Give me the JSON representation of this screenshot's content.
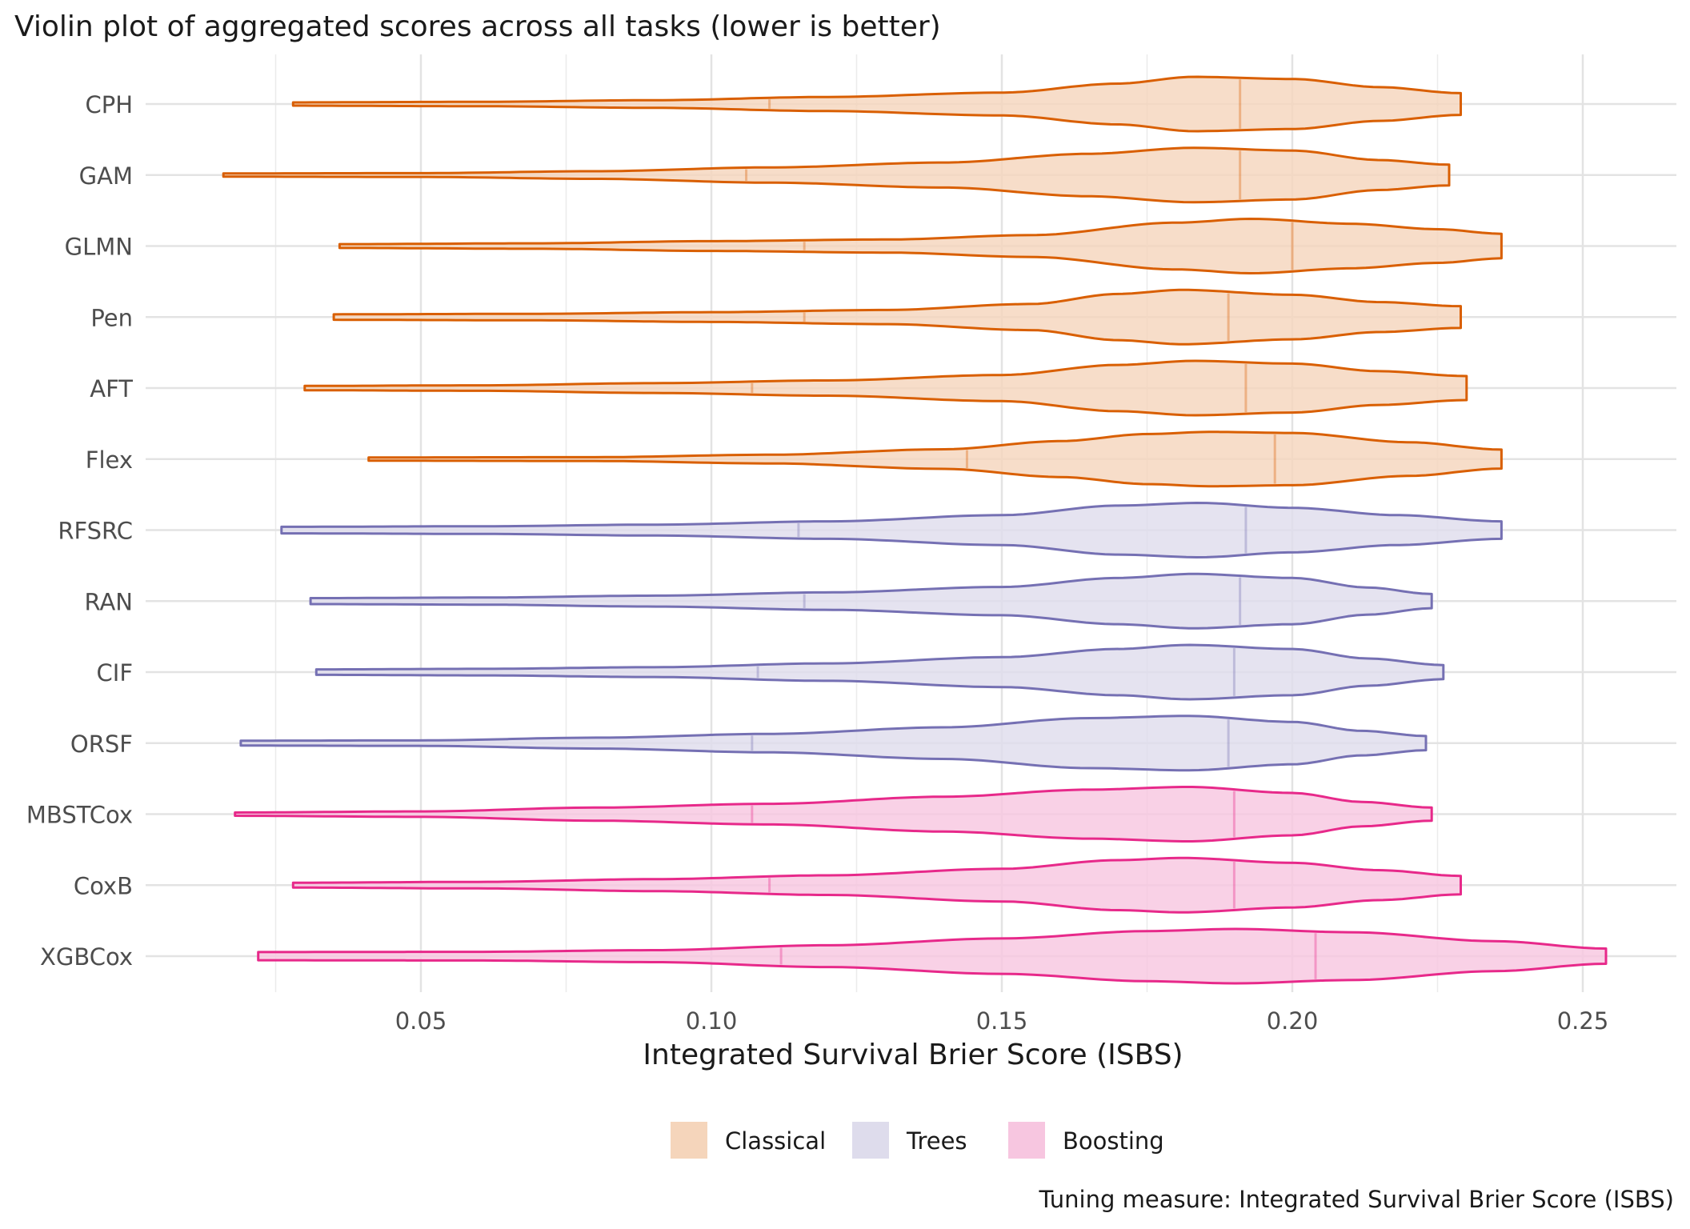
{
  "chart_data": {
    "type": "violin",
    "title": "Violin plot of aggregated scores across all tasks (lower is better)",
    "xlabel": "Integrated Survival Brier Score (ISBS)",
    "ylabel": "",
    "caption": "Tuning measure: Integrated Survival Brier Score (ISBS)",
    "xlim": [
      0.0,
      0.27
    ],
    "x_ticks": [
      {
        "value": 0.05,
        "label": "0.05"
      },
      {
        "value": 0.1,
        "label": "0.10"
      },
      {
        "value": 0.15,
        "label": "0.15"
      },
      {
        "value": 0.2,
        "label": "0.20"
      },
      {
        "value": 0.25,
        "label": "0.25"
      }
    ],
    "grid": true,
    "legend_position": "bottom",
    "legend": [
      {
        "label": "Classical",
        "fill": "#f5d5bb",
        "stroke": "#d95f02"
      },
      {
        "label": "Trees",
        "fill": "#dedcec",
        "stroke": "#7570b3"
      },
      {
        "label": "Boosting",
        "fill": "#f7c6e0",
        "stroke": "#e7298a"
      }
    ],
    "series": [
      {
        "name": "CPH",
        "group": "Classical",
        "min": 0.028,
        "max": 0.229,
        "quantiles": [
          0.11,
          0.191
        ],
        "peak": 0.183,
        "density": [
          [
            0.028,
            0.06
          ],
          [
            0.06,
            0.08
          ],
          [
            0.09,
            0.14
          ],
          [
            0.12,
            0.26
          ],
          [
            0.15,
            0.42
          ],
          [
            0.17,
            0.75
          ],
          [
            0.183,
            1.0
          ],
          [
            0.2,
            0.92
          ],
          [
            0.215,
            0.62
          ],
          [
            0.229,
            0.4
          ]
        ]
      },
      {
        "name": "GAM",
        "group": "Classical",
        "min": 0.016,
        "max": 0.227,
        "quantiles": [
          0.106,
          0.191
        ],
        "peak": 0.183,
        "density": [
          [
            0.016,
            0.06
          ],
          [
            0.05,
            0.07
          ],
          [
            0.08,
            0.14
          ],
          [
            0.11,
            0.28
          ],
          [
            0.14,
            0.46
          ],
          [
            0.165,
            0.78
          ],
          [
            0.183,
            1.0
          ],
          [
            0.2,
            0.9
          ],
          [
            0.215,
            0.55
          ],
          [
            0.227,
            0.38
          ]
        ]
      },
      {
        "name": "GLMN",
        "group": "Classical",
        "min": 0.036,
        "max": 0.236,
        "quantiles": [
          0.116,
          0.2
        ],
        "peak": 0.193,
        "density": [
          [
            0.036,
            0.07
          ],
          [
            0.07,
            0.1
          ],
          [
            0.1,
            0.18
          ],
          [
            0.13,
            0.24
          ],
          [
            0.155,
            0.4
          ],
          [
            0.18,
            0.86
          ],
          [
            0.193,
            1.0
          ],
          [
            0.21,
            0.82
          ],
          [
            0.225,
            0.62
          ],
          [
            0.236,
            0.45
          ]
        ]
      },
      {
        "name": "Pen",
        "group": "Classical",
        "min": 0.035,
        "max": 0.229,
        "quantiles": [
          0.116,
          0.189
        ],
        "peak": 0.181,
        "density": [
          [
            0.035,
            0.1
          ],
          [
            0.07,
            0.12
          ],
          [
            0.1,
            0.18
          ],
          [
            0.13,
            0.26
          ],
          [
            0.155,
            0.48
          ],
          [
            0.17,
            0.85
          ],
          [
            0.181,
            1.0
          ],
          [
            0.2,
            0.82
          ],
          [
            0.215,
            0.55
          ],
          [
            0.229,
            0.4
          ]
        ]
      },
      {
        "name": "AFT",
        "group": "Classical",
        "min": 0.03,
        "max": 0.23,
        "quantiles": [
          0.107,
          0.192
        ],
        "peak": 0.183,
        "density": [
          [
            0.03,
            0.08
          ],
          [
            0.06,
            0.1
          ],
          [
            0.09,
            0.18
          ],
          [
            0.12,
            0.28
          ],
          [
            0.15,
            0.48
          ],
          [
            0.17,
            0.85
          ],
          [
            0.183,
            1.0
          ],
          [
            0.2,
            0.9
          ],
          [
            0.215,
            0.62
          ],
          [
            0.23,
            0.44
          ]
        ]
      },
      {
        "name": "Flex",
        "group": "Classical",
        "min": 0.041,
        "max": 0.236,
        "quantiles": [
          0.144,
          0.197
        ],
        "peak": 0.186,
        "density": [
          [
            0.041,
            0.06
          ],
          [
            0.08,
            0.07
          ],
          [
            0.11,
            0.16
          ],
          [
            0.14,
            0.36
          ],
          [
            0.16,
            0.66
          ],
          [
            0.175,
            0.92
          ],
          [
            0.186,
            1.0
          ],
          [
            0.2,
            0.96
          ],
          [
            0.22,
            0.62
          ],
          [
            0.236,
            0.35
          ]
        ]
      },
      {
        "name": "RFSRC",
        "group": "Trees",
        "min": 0.026,
        "max": 0.236,
        "quantiles": [
          0.115,
          0.192
        ],
        "peak": 0.184,
        "density": [
          [
            0.026,
            0.12
          ],
          [
            0.06,
            0.14
          ],
          [
            0.09,
            0.2
          ],
          [
            0.12,
            0.32
          ],
          [
            0.15,
            0.55
          ],
          [
            0.17,
            0.9
          ],
          [
            0.184,
            1.0
          ],
          [
            0.2,
            0.82
          ],
          [
            0.218,
            0.55
          ],
          [
            0.236,
            0.32
          ]
        ]
      },
      {
        "name": "RAN",
        "group": "Trees",
        "min": 0.031,
        "max": 0.224,
        "quantiles": [
          0.116,
          0.191
        ],
        "peak": 0.183,
        "density": [
          [
            0.031,
            0.11
          ],
          [
            0.06,
            0.13
          ],
          [
            0.09,
            0.2
          ],
          [
            0.12,
            0.32
          ],
          [
            0.15,
            0.52
          ],
          [
            0.17,
            0.85
          ],
          [
            0.183,
            1.0
          ],
          [
            0.2,
            0.85
          ],
          [
            0.213,
            0.5
          ],
          [
            0.224,
            0.26
          ]
        ]
      },
      {
        "name": "CIF",
        "group": "Trees",
        "min": 0.032,
        "max": 0.226,
        "quantiles": [
          0.108,
          0.19
        ],
        "peak": 0.182,
        "density": [
          [
            0.032,
            0.1
          ],
          [
            0.06,
            0.12
          ],
          [
            0.09,
            0.18
          ],
          [
            0.12,
            0.32
          ],
          [
            0.15,
            0.55
          ],
          [
            0.17,
            0.85
          ],
          [
            0.182,
            1.0
          ],
          [
            0.2,
            0.85
          ],
          [
            0.213,
            0.5
          ],
          [
            0.226,
            0.26
          ]
        ]
      },
      {
        "name": "ORSF",
        "group": "Trees",
        "min": 0.019,
        "max": 0.223,
        "quantiles": [
          0.107,
          0.189
        ],
        "peak": 0.182,
        "density": [
          [
            0.019,
            0.09
          ],
          [
            0.05,
            0.1
          ],
          [
            0.08,
            0.2
          ],
          [
            0.11,
            0.34
          ],
          [
            0.14,
            0.58
          ],
          [
            0.165,
            0.92
          ],
          [
            0.182,
            1.0
          ],
          [
            0.2,
            0.78
          ],
          [
            0.212,
            0.45
          ],
          [
            0.223,
            0.26
          ]
        ]
      },
      {
        "name": "MBSTCox",
        "group": "Boosting",
        "min": 0.018,
        "max": 0.224,
        "quantiles": [
          0.107,
          0.19
        ],
        "peak": 0.182,
        "density": [
          [
            0.018,
            0.06
          ],
          [
            0.05,
            0.1
          ],
          [
            0.08,
            0.24
          ],
          [
            0.11,
            0.38
          ],
          [
            0.14,
            0.64
          ],
          [
            0.165,
            0.9
          ],
          [
            0.182,
            1.0
          ],
          [
            0.2,
            0.78
          ],
          [
            0.212,
            0.45
          ],
          [
            0.224,
            0.24
          ]
        ]
      },
      {
        "name": "CoxB",
        "group": "Boosting",
        "min": 0.028,
        "max": 0.229,
        "quantiles": [
          0.11,
          0.19
        ],
        "peak": 0.181,
        "density": [
          [
            0.028,
            0.09
          ],
          [
            0.06,
            0.12
          ],
          [
            0.09,
            0.22
          ],
          [
            0.12,
            0.36
          ],
          [
            0.15,
            0.6
          ],
          [
            0.17,
            0.92
          ],
          [
            0.181,
            1.0
          ],
          [
            0.2,
            0.82
          ],
          [
            0.215,
            0.55
          ],
          [
            0.229,
            0.34
          ]
        ]
      },
      {
        "name": "XGBCox",
        "group": "Boosting",
        "min": 0.022,
        "max": 0.254,
        "quantiles": [
          0.112,
          0.204
        ],
        "peak": 0.19,
        "density": [
          [
            0.022,
            0.15
          ],
          [
            0.06,
            0.16
          ],
          [
            0.09,
            0.22
          ],
          [
            0.12,
            0.4
          ],
          [
            0.15,
            0.65
          ],
          [
            0.175,
            0.92
          ],
          [
            0.19,
            1.0
          ],
          [
            0.21,
            0.88
          ],
          [
            0.235,
            0.55
          ],
          [
            0.254,
            0.28
          ]
        ]
      }
    ]
  }
}
